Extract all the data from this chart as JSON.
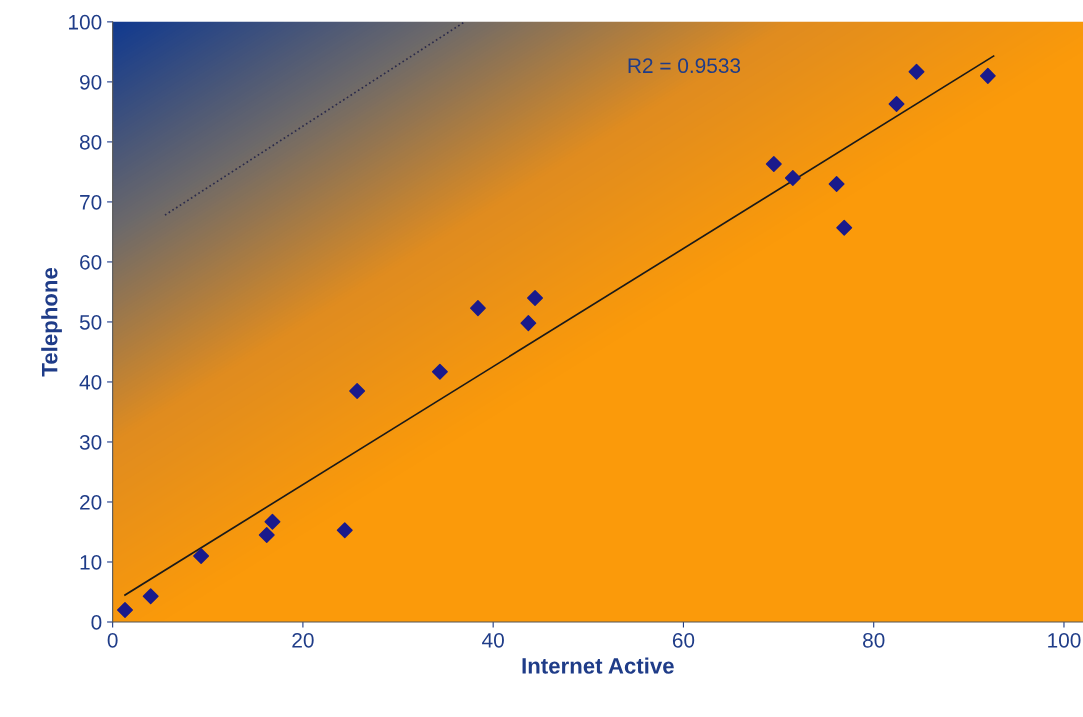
{
  "chart_data": {
    "type": "scatter",
    "xlabel": "Internet Active",
    "ylabel": "Telephone",
    "annotations": [
      "R2 = 0.9533"
    ],
    "series": [
      {
        "marker": "diamond",
        "color": "#1a1a8c",
        "x": [
          1.3,
          4,
          9.3,
          16.2,
          16.8,
          24.4,
          25.7,
          34.4,
          38.4,
          43.7,
          44.4,
          69.5,
          71.5,
          76.1,
          76.9,
          82.4,
          84.5,
          92
        ],
        "values": [
          2,
          4.3,
          11,
          14.5,
          16.7,
          15.3,
          38.5,
          41.7,
          52.3,
          49.8,
          54,
          76.3,
          74,
          73,
          65.7,
          86.3,
          91.7,
          91
        ]
      },
      {
        "type": "line",
        "color": "#1a1a1a",
        "line_style": "solid",
        "x": [
          1.3,
          92.6
        ],
        "values": [
          4.5,
          94.3
        ]
      },
      {
        "type": "line",
        "color": "#2a2a4a",
        "line_style": "dotted",
        "x": [
          5.5,
          37
        ],
        "values": [
          67.8,
          100
        ]
      }
    ],
    "xlim": [
      0,
      102
    ],
    "ylim": [
      0,
      100
    ],
    "xticks": [
      0,
      20,
      40,
      60,
      80,
      100
    ],
    "yticks": [
      0,
      10,
      20,
      30,
      40,
      50,
      60,
      70,
      80,
      90,
      100
    ],
    "grid": false,
    "legend": false
  }
}
